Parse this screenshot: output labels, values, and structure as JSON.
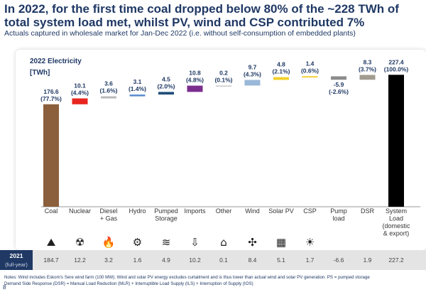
{
  "title": "In 2022, for the first time coal dropped below 80% of the ~228 TWh of total system load met, whilst PV, wind and CSP contributed 7%",
  "subtitle": "Actuals captured in wholesale market for Jan-Dec 2022 (i.e. without self-consumption of embedded plants)",
  "chart_label_line1": "2022 Electricity",
  "chart_label_line2": "[TWh]",
  "year_label": "2021",
  "year_sublabel": "(full-year)",
  "notes_line1": "Notes: Wind includes Eskom's Sere wind farm (100 MW). Wind and solar PV energy excludes curtailment and is thus lower than actual wind and solar PV generation. PS = pumped storage",
  "notes_line2": "Demand Side Response (DSR) = Manual Load Reduction (MLR) + Interruptible Load Supply (ILS) + Interruption of Supply (IOS)",
  "page_number": "8",
  "chart_data": {
    "type": "waterfall",
    "title": "2022 Electricity",
    "ylabel": "[TWh]",
    "ylim": [
      0,
      240
    ],
    "categories": [
      "Coal",
      "Nuclear",
      "Diesel + Gas",
      "Hydro",
      "Pumped Storage",
      "Imports",
      "Other",
      "Wind",
      "Solar PV",
      "CSP",
      "Pump load",
      "DSR",
      "System Load (domestic & export)"
    ],
    "category_lines": [
      [
        "Coal"
      ],
      [
        "Nuclear"
      ],
      [
        "Diesel",
        "+ Gas"
      ],
      [
        "Hydro"
      ],
      [
        "Pumped",
        "Storage"
      ],
      [
        "Imports"
      ],
      [
        "Other"
      ],
      [
        "Wind"
      ],
      [
        "Solar PV"
      ],
      [
        "CSP"
      ],
      [
        "Pump",
        "load"
      ],
      [
        "DSR"
      ],
      [
        "System",
        "Load",
        "(domestic",
        "& export)"
      ]
    ],
    "values": [
      176.6,
      10.1,
      3.6,
      3.1,
      4.5,
      10.8,
      0.2,
      9.7,
      4.8,
      1.4,
      -5.9,
      8.3,
      227.4
    ],
    "value_labels": [
      "176.6",
      "10.1",
      "3.6",
      "3.1",
      "4.5",
      "10.8",
      "0.2",
      "9.7",
      "4.8",
      "1.4",
      "-5.9",
      "8.3",
      "227.4"
    ],
    "percent_labels": [
      "(77.7%)",
      "(4.4%)",
      "(1.6%)",
      "(1.4%)",
      "(2.0%)",
      "(4.8%)",
      "(0.1%)",
      "(4.3%)",
      "(2.1%)",
      "(0.6%)",
      "(-2.6%)",
      "(3.7%)",
      "(100.0%)"
    ],
    "is_total": [
      false,
      false,
      false,
      false,
      false,
      false,
      false,
      false,
      false,
      false,
      false,
      false,
      true
    ],
    "colors": [
      "#8b5e3c",
      "#e8251f",
      "#b8b8b8",
      "#5b8ccf",
      "#1f4e79",
      "#7b2e8e",
      "#c8c8c8",
      "#9ab8d8",
      "#f2d02b",
      "#f2c400",
      "#8c8c8c",
      "#a29b8f",
      "#000000"
    ],
    "icons": [
      "coal-plant-icon",
      "nuclear-plant-icon",
      "flame-icon",
      "hydro-gear-icon",
      "pumped-storage-icon",
      "imports-icon",
      "factory-icon",
      "wind-turbine-icon",
      "solar-panel-icon",
      "csp-tower-icon",
      "",
      "",
      ""
    ],
    "values_2021": [
      "184.7",
      "12.2",
      "3.2",
      "1.6",
      "4.9",
      "10.2",
      "0.1",
      "8.4",
      "5.1",
      "1.7",
      "-6.6",
      "1.9",
      "227.2"
    ]
  }
}
